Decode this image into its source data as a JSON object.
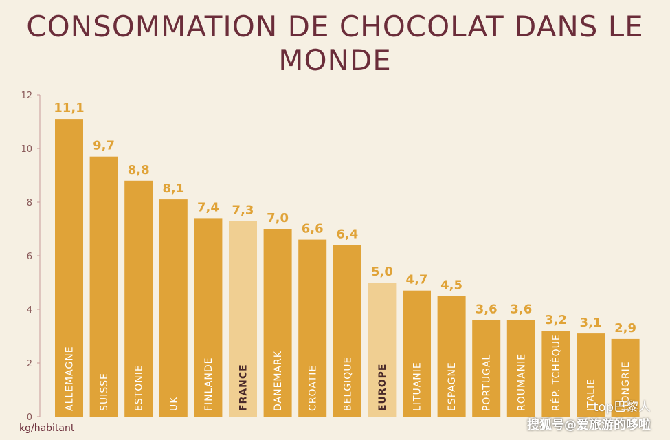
{
  "chart_data": {
    "type": "bar",
    "title": "CONSOMMATION DE CHOCOLAT DANS LE MONDE",
    "ylabel": "kg/habitant",
    "ylim": [
      0,
      12
    ],
    "yticks": [
      0,
      2,
      4,
      6,
      8,
      10,
      12
    ],
    "grid": false,
    "categories": [
      "ALLEMAGNE",
      "SUISSE",
      "ESTONIE",
      "UK",
      "FINLANDE",
      "FRANCE",
      "DANEMARK",
      "CROATIE",
      "BELGIQUE",
      "EUROPE",
      "LITUANIE",
      "ESPAGNE",
      "PORTUGAL",
      "ROUMANIE",
      "RÉP. TCHÈQUE",
      "ITALIE",
      "HONGRIE"
    ],
    "values": [
      11.1,
      9.7,
      8.8,
      8.1,
      7.4,
      7.3,
      7.0,
      6.6,
      6.4,
      5.0,
      4.7,
      4.5,
      3.6,
      3.6,
      3.2,
      3.1,
      2.9
    ],
    "value_labels": [
      "11,1",
      "9,7",
      "8,8",
      "8,1",
      "7,4",
      "7,3",
      "7,0",
      "6,6",
      "6,4",
      "5,0",
      "4,7",
      "4,5",
      "3,6",
      "3,6",
      "3,2",
      "3,1",
      "2,9"
    ],
    "highlighted": [
      "FRANCE",
      "EUROPE"
    ],
    "colors": {
      "bar": "#e0a338",
      "bar_highlight": "#f0cf92",
      "value_label": "#e0a338",
      "cat_label": "#ffffff",
      "cat_label_highlight": "#4a2a2a",
      "axis": "#c89a9a",
      "title": "#6b2d3a"
    }
  },
  "watermark": {
    "line1": "top巴黎人",
    "line2": "搜狐号@爱旅游的哆啦"
  }
}
